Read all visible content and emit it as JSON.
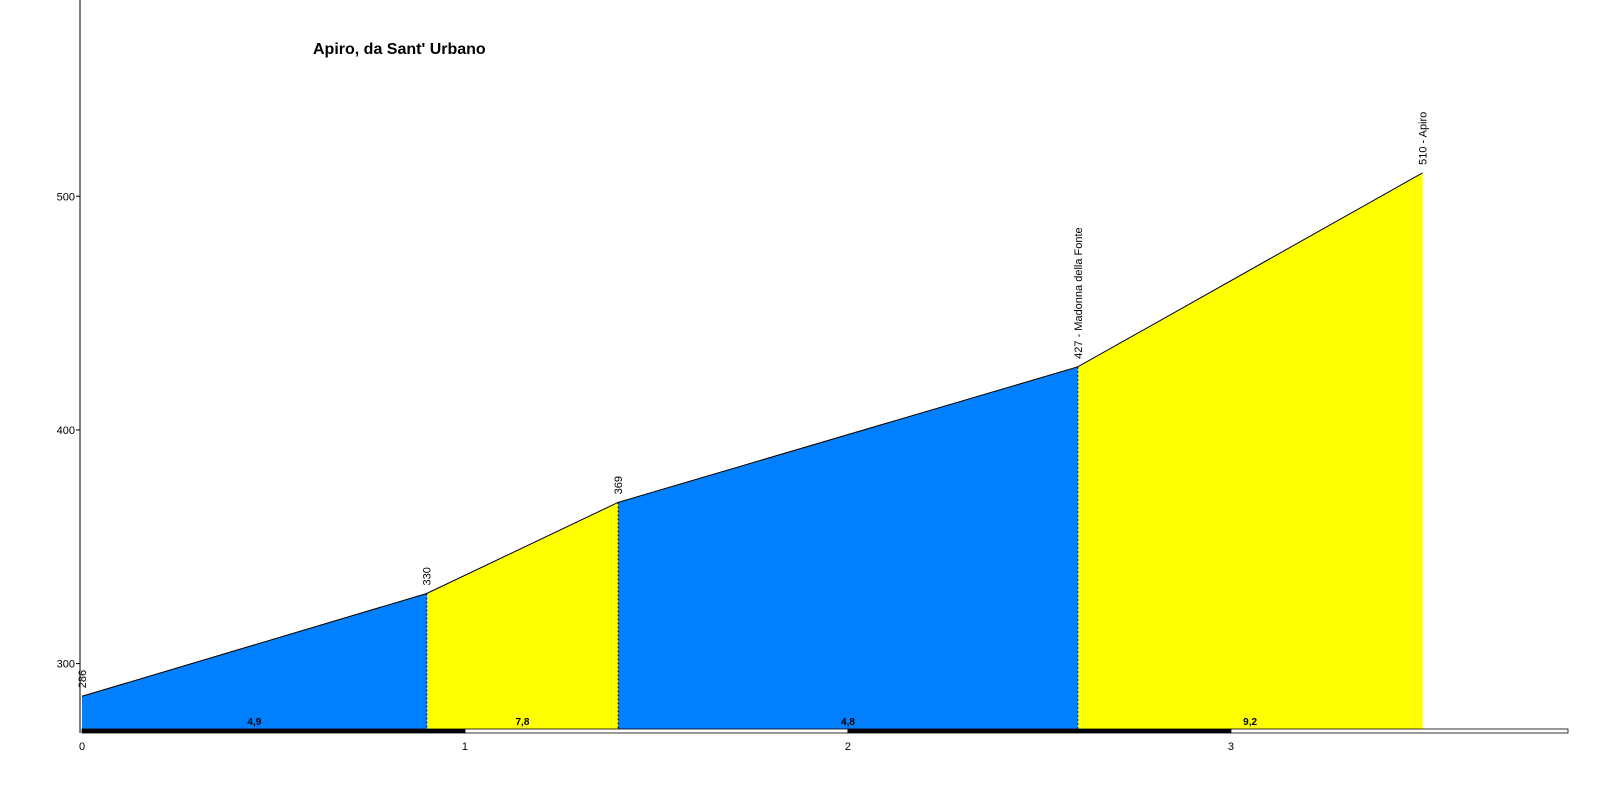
{
  "chart_data": {
    "type": "area",
    "title": "Apiro, da Sant' Urbano",
    "x": [
      0,
      0.9,
      1.4,
      2.6,
      3.5
    ],
    "values": [
      286,
      330,
      369,
      427,
      510
    ],
    "value_labels": [
      "286",
      "330",
      "369",
      "427 - Madonna della Fonte",
      "510 - Apiro"
    ],
    "segments": [
      {
        "value": 4.9,
        "label": "4,9",
        "color": "#0080ff"
      },
      {
        "value": 7.8,
        "label": "7,8",
        "color": "#ffff00"
      },
      {
        "value": 4.8,
        "label": "4,8",
        "color": "#0080ff"
      },
      {
        "value": 9.2,
        "label": "9,2",
        "color": "#ffff00"
      }
    ],
    "xlim": [
      0,
      3.88
    ],
    "ylim": [
      272,
      584
    ],
    "xticks": [
      0,
      1,
      2,
      3
    ],
    "yticks": [
      300,
      400,
      500
    ]
  }
}
